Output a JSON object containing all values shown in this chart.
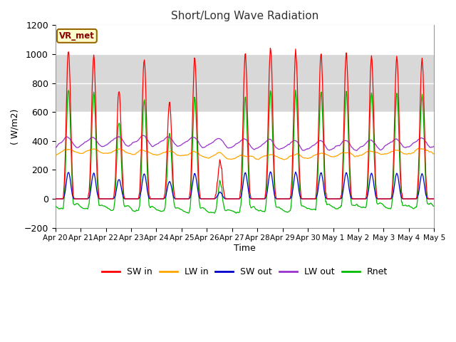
{
  "title": "Short/Long Wave Radiation",
  "xlabel": "Time",
  "ylabel": "( W/m2)",
  "ylim": [
    -200,
    1200
  ],
  "xlim": [
    0,
    360
  ],
  "background_color": "#ffffff",
  "plot_bg_color": "#ffffff",
  "label_box": "VR_met",
  "x_tick_labels": [
    "Apr 20",
    "Apr 21",
    "Apr 22",
    "Apr 23",
    "Apr 24",
    "Apr 25",
    "Apr 26",
    "Apr 27",
    "Apr 28",
    "Apr 29",
    "Apr 30",
    "May 1",
    "May 2",
    "May 3",
    "May 4",
    "May 5"
  ],
  "x_tick_positions": [
    0,
    24,
    48,
    72,
    96,
    120,
    144,
    168,
    192,
    216,
    240,
    264,
    288,
    312,
    336,
    360
  ],
  "yticks": [
    -200,
    0,
    200,
    400,
    600,
    800,
    1000,
    1200
  ],
  "series_colors": {
    "SW_in": "#ff0000",
    "LW_in": "#ffa500",
    "SW_out": "#0000cd",
    "LW_out": "#9932cc",
    "Rnet": "#00bb00"
  },
  "legend_labels": [
    "SW in",
    "LW in",
    "SW out",
    "LW out",
    "Rnet"
  ],
  "shaded_band": [
    600,
    1000
  ],
  "shaded_color": "#d8d8d8"
}
